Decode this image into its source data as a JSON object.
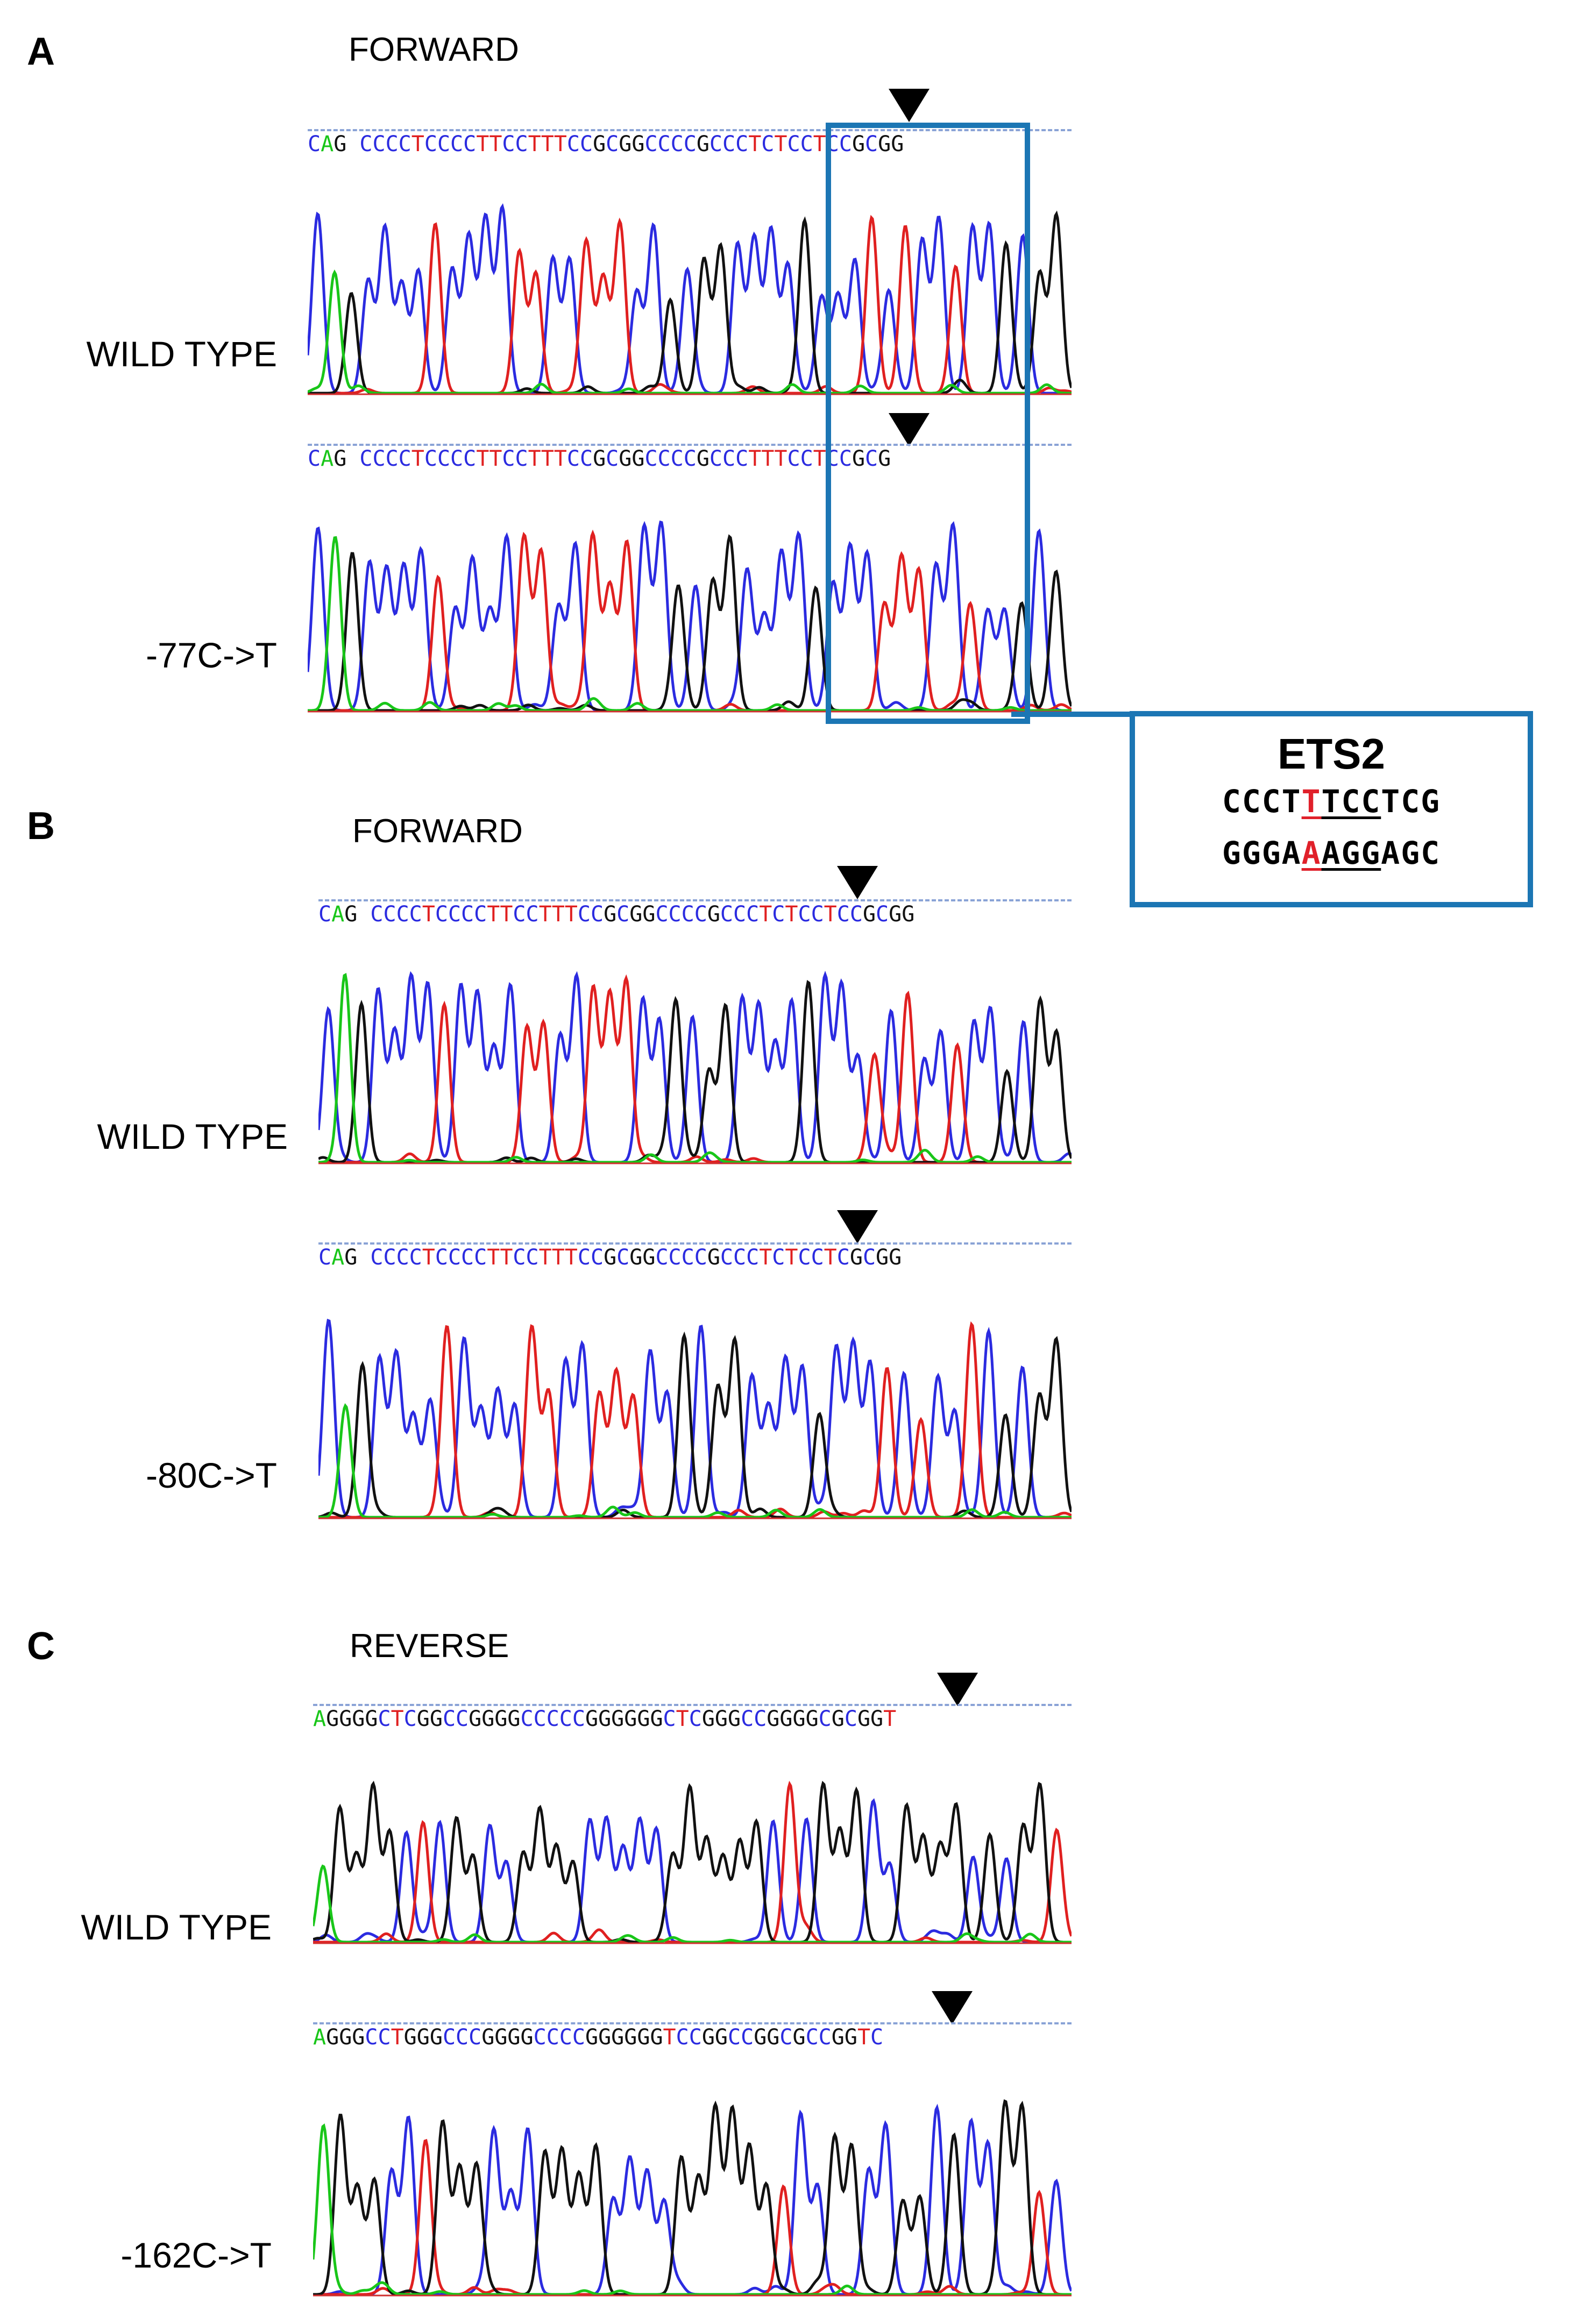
{
  "panels": [
    {
      "letter": "A",
      "direction": "FORWARD",
      "tracks": [
        {
          "label": "WILD TYPE",
          "sequence": "CAG CCCCTCCCCTTCCTTTCCGCGGCCCCGCCCTCTCCTCCGCGG",
          "seed": 11
        },
        {
          "label": "-77C->T",
          "sequence": "CAG CCCCTCCCCTTCCTTTCCGCGGCCCCGCCCTTTCCTCCGCG",
          "seed": 23
        }
      ]
    },
    {
      "letter": "B",
      "direction": "FORWARD",
      "tracks": [
        {
          "label": "WILD TYPE",
          "sequence": "CAG CCCCTCCCCTTCCTTTCCGCGGCCCCGCCCTCTCCTCCGCGG",
          "seed": 37
        },
        {
          "label": "-80C->T",
          "sequence": "CAG CCCCTCCCCTTCCTTTCCGCGGCCCCGCCCTCTCCTCGCGG",
          "seed": 41
        }
      ]
    },
    {
      "letter": "C",
      "direction": "REVERSE",
      "tracks": [
        {
          "label": "WILD TYPE",
          "sequence": "AGGGGCTCGGCCGGGGCCCCCGGGGGGCTCGGGCCGGGGCGCGGT",
          "seed": 53
        },
        {
          "label": "-162C->T",
          "sequence": "AGGGCCTGGGCCCGGGGCCCCGGGGGGTCCGGCCGGCGCCGGTC",
          "seed": 67
        }
      ]
    }
  ],
  "ets2": {
    "title": "ETS2",
    "line1": {
      "pre": "CCCT",
      "mut": "T",
      "motif": "TCC",
      "post": "TCG"
    },
    "line2": {
      "pre": "GGGA",
      "mut": "A",
      "motif": "AGG",
      "post": "AGC"
    }
  },
  "colors": {
    "C": "#2b2be0",
    "T": "#e02020",
    "G": "#111111",
    "A": "#19c619",
    "highlight_box": "#1c76b4"
  }
}
